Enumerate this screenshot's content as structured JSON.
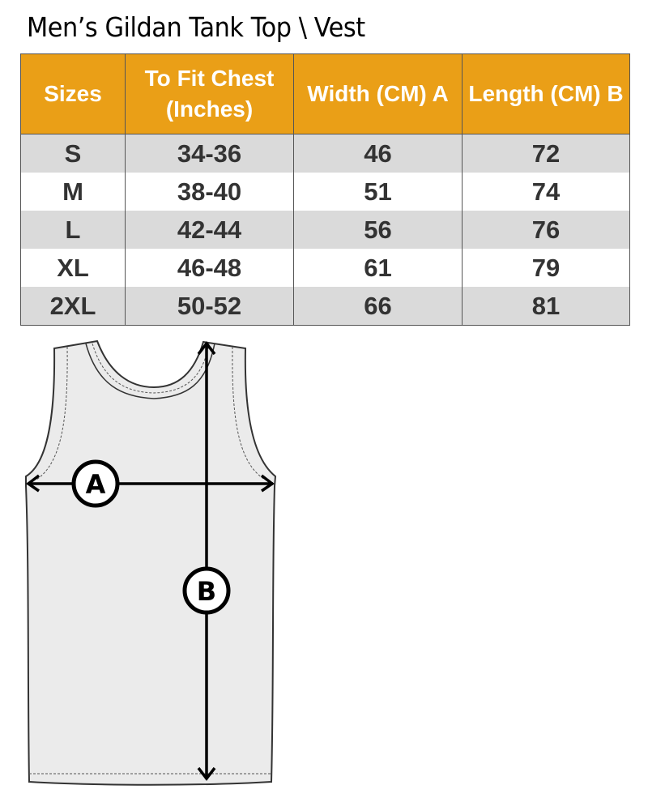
{
  "title": "Men’s Gildan Tank Top \\ Vest",
  "table": {
    "headers": [
      "Sizes",
      "To Fit Chest (Inches)",
      "Width (CM) A",
      "Length  (CM) B"
    ],
    "header_color": "#ea9f17",
    "rows": [
      [
        "S",
        "34-36",
        "46",
        "72"
      ],
      [
        "M",
        "38-40",
        "51",
        "74"
      ],
      [
        "L",
        "42-44",
        "56",
        "76"
      ],
      [
        "XL",
        "46-48",
        "61",
        "79"
      ],
      [
        "2XL",
        "50-52",
        "66",
        "81"
      ]
    ]
  },
  "diagram": {
    "label_a": "A",
    "label_b": "B"
  }
}
